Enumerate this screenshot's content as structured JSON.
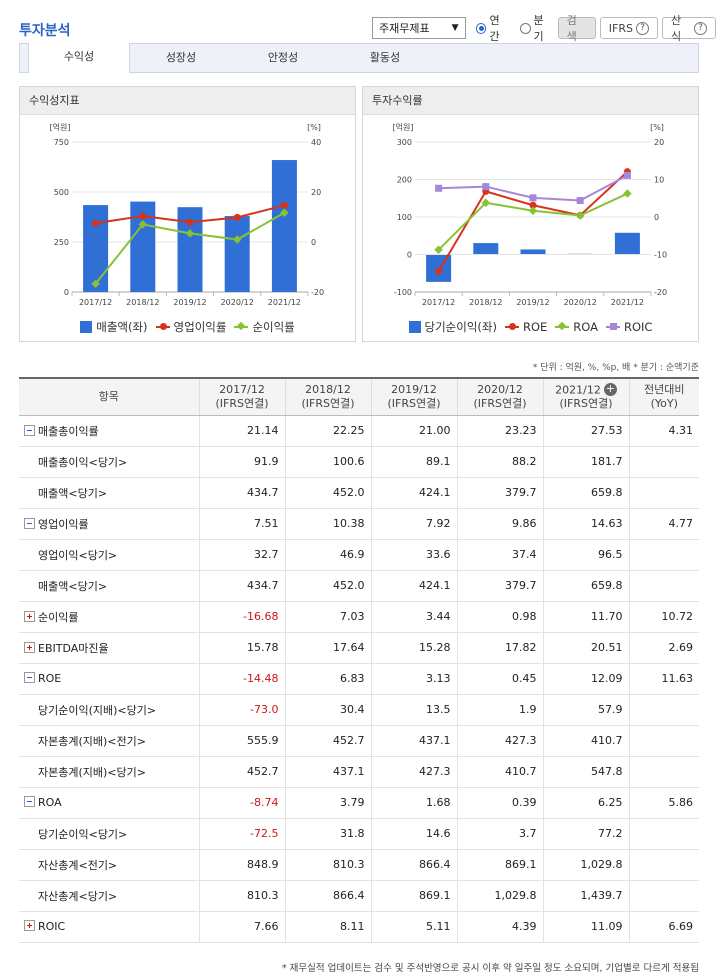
{
  "header": {
    "title": "투자분석",
    "select_value": "주재무제표",
    "radio_annual": "연간",
    "radio_quarter": "분기",
    "search_btn": "검색",
    "ifrs_btn": "IFRS",
    "formula_btn": "산식"
  },
  "tabs": [
    "수익성",
    "성장성",
    "안정성",
    "활동성"
  ],
  "colors": {
    "bar": "#2f6fd6",
    "op": "#d6331b",
    "net": "#87c233",
    "roa": "#87c233",
    "roic": "#a686da",
    "accent": "#2a63c8"
  },
  "chart_data": [
    {
      "type": "bar",
      "title": "수익성지표",
      "categories": [
        "2017/12",
        "2018/12",
        "2019/12",
        "2020/12",
        "2021/12"
      ],
      "left_unit": "[억원]",
      "right_unit": "[%]",
      "left_ticks": [
        "750",
        "500",
        "250",
        "0"
      ],
      "right_ticks": [
        "40",
        "20",
        "0",
        "-20"
      ],
      "ylim_left": [
        0,
        750
      ],
      "ylim_right": [
        -20,
        40
      ],
      "series": [
        {
          "name": "매출액(좌)",
          "type": "bar",
          "axis": "left",
          "values": [
            434.7,
            452.0,
            424.1,
            379.7,
            659.8
          ]
        },
        {
          "name": "영업이익률",
          "type": "line",
          "axis": "right",
          "values": [
            7.51,
            10.38,
            7.92,
            9.86,
            14.63
          ]
        },
        {
          "name": "순이익률",
          "type": "line",
          "axis": "right",
          "values": [
            -16.68,
            7.03,
            3.44,
            0.98,
            11.7
          ]
        }
      ]
    },
    {
      "type": "bar",
      "title": "투자수익률",
      "categories": [
        "2017/12",
        "2018/12",
        "2019/12",
        "2020/12",
        "2021/12"
      ],
      "left_unit": "[억원]",
      "right_unit": "[%]",
      "left_ticks": [
        "300",
        "200",
        "100",
        "0",
        "-100"
      ],
      "right_ticks": [
        "20",
        "10",
        "0",
        "-10",
        "-20"
      ],
      "ylim_left": [
        -100,
        300
      ],
      "ylim_right": [
        -20,
        20
      ],
      "series": [
        {
          "name": "당기순이익(좌)",
          "type": "bar",
          "axis": "left",
          "values": [
            -73.0,
            30.4,
            13.5,
            1.9,
            57.9
          ]
        },
        {
          "name": "ROE",
          "type": "line",
          "axis": "right",
          "values": [
            -14.48,
            6.83,
            3.13,
            0.45,
            12.09
          ]
        },
        {
          "name": "ROA",
          "type": "line",
          "axis": "right",
          "values": [
            -8.74,
            3.79,
            1.68,
            0.39,
            6.25
          ]
        },
        {
          "name": "ROIC",
          "type": "line",
          "axis": "right",
          "values": [
            7.66,
            8.11,
            5.11,
            4.39,
            11.09
          ]
        }
      ]
    }
  ],
  "notes": "* 단위 : 억원, %, %p, 배    * 분기 : 순액기준",
  "table": {
    "col_item": "항목",
    "columns": [
      {
        "year": "2017/12",
        "basis": "(IFRS연결)"
      },
      {
        "year": "2018/12",
        "basis": "(IFRS연결)"
      },
      {
        "year": "2019/12",
        "basis": "(IFRS연결)"
      },
      {
        "year": "2020/12",
        "basis": "(IFRS연결)"
      },
      {
        "year": "2021/12",
        "basis": "(IFRS연결)"
      }
    ],
    "col_yoy_1": "전년대비",
    "col_yoy_2": "(YoY)",
    "rows": [
      {
        "label": "매출총이익률",
        "toggle": "minus",
        "values": [
          "21.14",
          "22.25",
          "21.00",
          "23.23",
          "27.53"
        ],
        "yoy": "4.31"
      },
      {
        "label": "매출총이익<당기>",
        "sub": true,
        "values": [
          "91.9",
          "100.6",
          "89.1",
          "88.2",
          "181.7"
        ],
        "yoy": ""
      },
      {
        "label": "매출액<당기>",
        "sub": true,
        "values": [
          "434.7",
          "452.0",
          "424.1",
          "379.7",
          "659.8"
        ],
        "yoy": ""
      },
      {
        "label": "영업이익률",
        "toggle": "minus",
        "values": [
          "7.51",
          "10.38",
          "7.92",
          "9.86",
          "14.63"
        ],
        "yoy": "4.77"
      },
      {
        "label": "영업이익<당기>",
        "sub": true,
        "values": [
          "32.7",
          "46.9",
          "33.6",
          "37.4",
          "96.5"
        ],
        "yoy": ""
      },
      {
        "label": "매출액<당기>",
        "sub": true,
        "values": [
          "434.7",
          "452.0",
          "424.1",
          "379.7",
          "659.8"
        ],
        "yoy": ""
      },
      {
        "label": "순이익률",
        "toggle": "plus",
        "values": [
          "-16.68",
          "7.03",
          "3.44",
          "0.98",
          "11.70"
        ],
        "yoy": "10.72"
      },
      {
        "label": "EBITDA마진율",
        "toggle": "plus",
        "values": [
          "15.78",
          "17.64",
          "15.28",
          "17.82",
          "20.51"
        ],
        "yoy": "2.69"
      },
      {
        "label": "ROE",
        "toggle": "minus",
        "values": [
          "-14.48",
          "6.83",
          "3.13",
          "0.45",
          "12.09"
        ],
        "yoy": "11.63"
      },
      {
        "label": "당기순이익(지배)<당기>",
        "sub": true,
        "values": [
          "-73.0",
          "30.4",
          "13.5",
          "1.9",
          "57.9"
        ],
        "yoy": ""
      },
      {
        "label": "자본총계(지배)<전기>",
        "sub": true,
        "values": [
          "555.9",
          "452.7",
          "437.1",
          "427.3",
          "410.7"
        ],
        "yoy": ""
      },
      {
        "label": "자본총계(지배)<당기>",
        "sub": true,
        "values": [
          "452.7",
          "437.1",
          "427.3",
          "410.7",
          "547.8"
        ],
        "yoy": ""
      },
      {
        "label": "ROA",
        "toggle": "minus",
        "values": [
          "-8.74",
          "3.79",
          "1.68",
          "0.39",
          "6.25"
        ],
        "yoy": "5.86"
      },
      {
        "label": "당기순이익<당기>",
        "sub": true,
        "values": [
          "-72.5",
          "31.8",
          "14.6",
          "3.7",
          "77.2"
        ],
        "yoy": ""
      },
      {
        "label": "자산총계<전기>",
        "sub": true,
        "values": [
          "848.9",
          "810.3",
          "866.4",
          "869.1",
          "1,029.8"
        ],
        "yoy": ""
      },
      {
        "label": "자산총계<당기>",
        "sub": true,
        "values": [
          "810.3",
          "866.4",
          "869.1",
          "1,029.8",
          "1,439.7"
        ],
        "yoy": ""
      },
      {
        "label": "ROIC",
        "toggle": "plus",
        "values": [
          "7.66",
          "8.11",
          "5.11",
          "4.39",
          "11.09"
        ],
        "yoy": "6.69"
      }
    ]
  },
  "footer": "* 재무실적 업데이트는 검수 및 주석반영으로 공시 이후 약 일주일 정도 소요되며, 기업별로 다르게 적용됩"
}
